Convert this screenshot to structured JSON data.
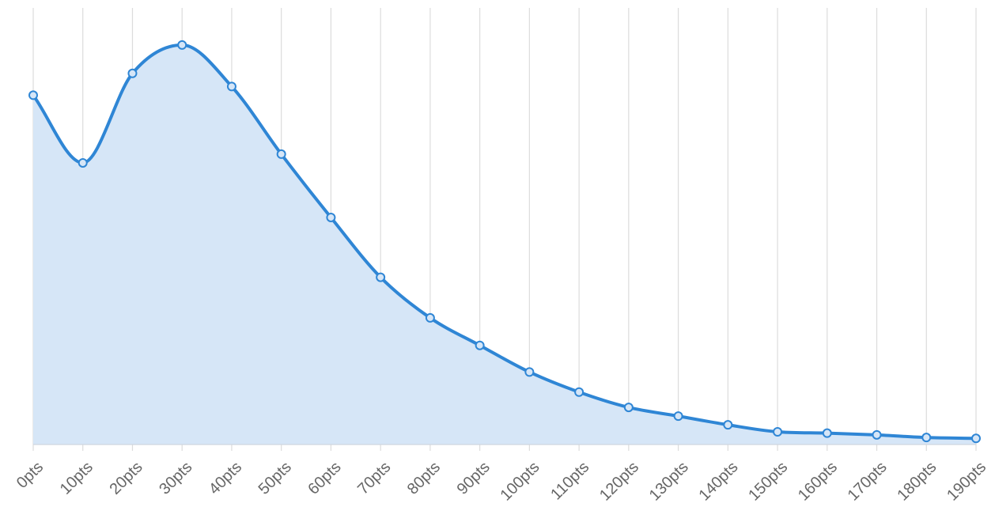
{
  "chart_data": {
    "type": "area",
    "categories": [
      "0pts",
      "10pts",
      "20pts",
      "30pts",
      "40pts",
      "50pts",
      "60pts",
      "70pts",
      "80pts",
      "90pts",
      "100pts",
      "110pts",
      "120pts",
      "130pts",
      "140pts",
      "150pts",
      "160pts",
      "170pts",
      "180pts",
      "190pts"
    ],
    "series": [
      {
        "values": [
          80,
          64.5,
          85,
          91.5,
          82,
          66.5,
          52,
          38.3,
          29,
          22.7,
          16.6,
          12,
          8.5,
          6.5,
          4.5,
          2.9,
          2.6,
          2.2,
          1.6,
          1.4
        ],
        "color": "#2f86d5",
        "fill_color": "#d6e6f7"
      }
    ],
    "ylim": [
      0,
      100
    ],
    "grid": {
      "vertical": true,
      "horizontal": false
    },
    "legend": "none",
    "title": "",
    "xlabel": "",
    "ylabel": ""
  }
}
